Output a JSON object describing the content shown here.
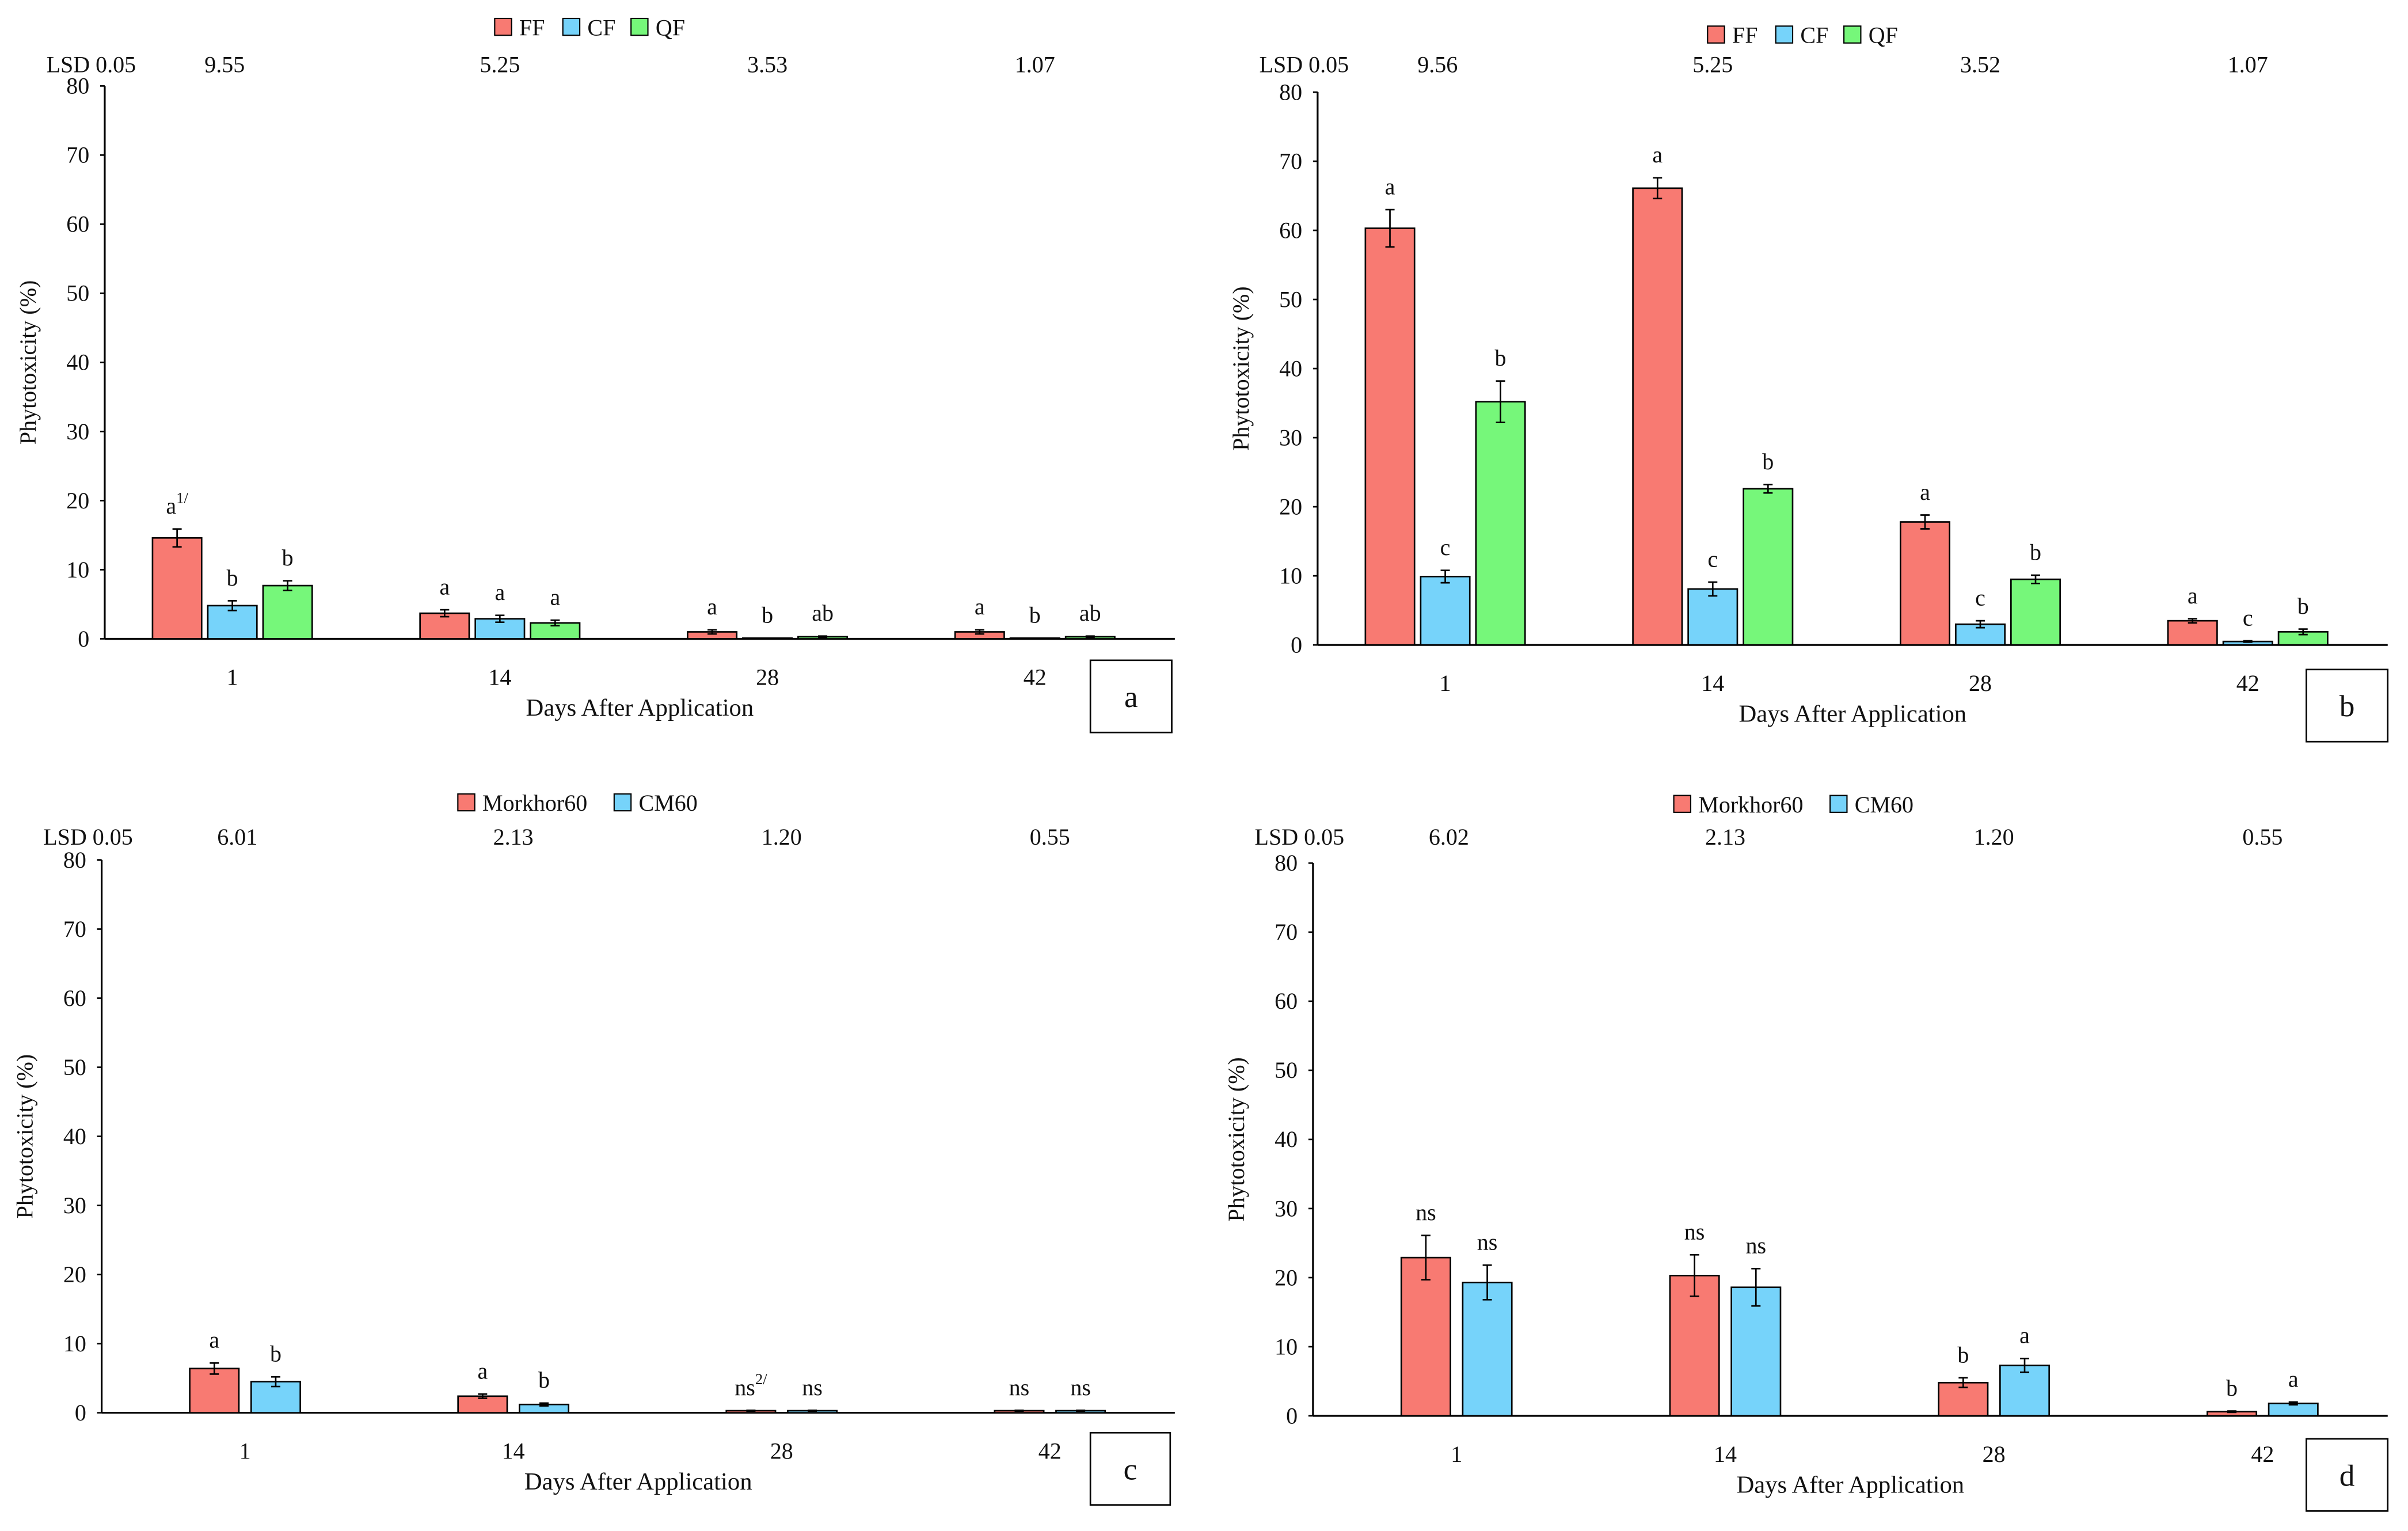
{
  "colors": {
    "FF": "#f87a72",
    "CF": "#76d3fa",
    "QF": "#76f77a",
    "Morkhor60": "#f87a72",
    "CM60": "#76d3fa"
  },
  "chart_data": [
    {
      "type": "bar",
      "panel": "a",
      "categories": [
        "1",
        "14",
        "28",
        "42"
      ],
      "xlabel": "Days After Application",
      "ylabel": "Phytotoxicity (%)",
      "ylim": [
        0,
        80
      ],
      "yticks": [
        "0",
        "10",
        "20",
        "30",
        "40",
        "50",
        "60",
        "70",
        "80"
      ],
      "lsd_label": "LSD 0.05",
      "lsd": [
        "9.55",
        "5.25",
        "3.53",
        "1.07"
      ],
      "legend_position": "top-center",
      "series": [
        {
          "name": "FF",
          "values": [
            14.6,
            3.7,
            1.0,
            1.0
          ],
          "errors": [
            1.3,
            0.5,
            0.3,
            0.3
          ],
          "letters": [
            "a",
            "a",
            "a",
            "a"
          ],
          "sup": [
            "1/",
            "",
            "",
            ""
          ]
        },
        {
          "name": "CF",
          "values": [
            4.8,
            2.9,
            0.1,
            0.1
          ],
          "errors": [
            0.7,
            0.5,
            0.0,
            0.0
          ],
          "letters": [
            "b",
            "a",
            "b",
            "b"
          ],
          "sup": [
            "",
            "",
            "",
            ""
          ]
        },
        {
          "name": "QF",
          "values": [
            7.7,
            2.3,
            0.3,
            0.3
          ],
          "errors": [
            0.7,
            0.4,
            0.1,
            0.1
          ],
          "letters": [
            "b",
            "a",
            "ab",
            "ab"
          ],
          "sup": [
            "",
            "",
            "",
            ""
          ]
        }
      ]
    },
    {
      "type": "bar",
      "panel": "b",
      "categories": [
        "1",
        "14",
        "28",
        "42"
      ],
      "xlabel": "Days After Application",
      "ylabel": "Phytotoxicity (%)",
      "ylim": [
        0,
        80
      ],
      "yticks": [
        "0",
        "10",
        "20",
        "30",
        "40",
        "50",
        "60",
        "70",
        "80"
      ],
      "lsd_label": "LSD 0.05",
      "lsd": [
        "9.56",
        "5.25",
        "3.52",
        "1.07"
      ],
      "legend_position": "top-center",
      "series": [
        {
          "name": "FF",
          "values": [
            60.3,
            66.1,
            17.8,
            3.5
          ],
          "errors": [
            2.7,
            1.5,
            1.0,
            0.3
          ],
          "letters": [
            "a",
            "a",
            "a",
            "a"
          ],
          "sup": [
            "",
            "",
            "",
            ""
          ]
        },
        {
          "name": "CF",
          "values": [
            9.9,
            8.1,
            3.0,
            0.5
          ],
          "errors": [
            0.9,
            1.0,
            0.5,
            0.1
          ],
          "letters": [
            "c",
            "c",
            "c",
            "c"
          ],
          "sup": [
            "",
            "",
            "",
            ""
          ]
        },
        {
          "name": "QF",
          "values": [
            35.2,
            22.6,
            9.5,
            1.9
          ],
          "errors": [
            3.0,
            0.6,
            0.6,
            0.4
          ],
          "letters": [
            "b",
            "b",
            "b",
            "b"
          ],
          "sup": [
            "",
            "",
            "",
            ""
          ]
        }
      ]
    },
    {
      "type": "bar",
      "panel": "c",
      "categories": [
        "1",
        "14",
        "28",
        "42"
      ],
      "xlabel": "Days After Application",
      "ylabel": "Phytotoxicity (%)",
      "ylim": [
        0,
        80
      ],
      "yticks": [
        "0",
        "10",
        "20",
        "30",
        "40",
        "50",
        "60",
        "70",
        "80"
      ],
      "lsd_label": "LSD 0.05",
      "lsd": [
        "6.01",
        "2.13",
        "1.20",
        "0.55"
      ],
      "legend_position": "top-center",
      "series": [
        {
          "name": "Morkhor60",
          "values": [
            6.4,
            2.4,
            0.3,
            0.3
          ],
          "errors": [
            0.8,
            0.3,
            0.05,
            0.05
          ],
          "letters": [
            "a",
            "a",
            "ns",
            "ns"
          ],
          "sup": [
            "",
            "",
            "2/",
            ""
          ]
        },
        {
          "name": "CM60",
          "values": [
            4.5,
            1.2,
            0.3,
            0.3
          ],
          "errors": [
            0.7,
            0.2,
            0.05,
            0.05
          ],
          "letters": [
            "b",
            "b",
            "ns",
            "ns"
          ],
          "sup": [
            "",
            "",
            "",
            ""
          ]
        }
      ]
    },
    {
      "type": "bar",
      "panel": "d",
      "categories": [
        "1",
        "14",
        "28",
        "42"
      ],
      "xlabel": "Days After Application",
      "ylabel": "Phytotoxicity (%)",
      "ylim": [
        0,
        80
      ],
      "yticks": [
        "0",
        "10",
        "20",
        "30",
        "40",
        "50",
        "60",
        "70",
        "80"
      ],
      "lsd_label": "LSD 0.05",
      "lsd": [
        "6.02",
        "2.13",
        "1.20",
        "0.55"
      ],
      "legend_position": "top-center",
      "series": [
        {
          "name": "Morkhor60",
          "values": [
            22.9,
            20.3,
            4.8,
            0.6
          ],
          "errors": [
            3.2,
            3.0,
            0.7,
            0.1
          ],
          "letters": [
            "ns",
            "ns",
            "b",
            "b"
          ],
          "sup": [
            "",
            "",
            "",
            ""
          ]
        },
        {
          "name": "CM60",
          "values": [
            19.3,
            18.6,
            7.3,
            1.8
          ],
          "errors": [
            2.5,
            2.7,
            1.0,
            0.2
          ],
          "letters": [
            "ns",
            "ns",
            "a",
            "a"
          ],
          "sup": [
            "",
            "",
            "",
            ""
          ]
        }
      ]
    }
  ]
}
